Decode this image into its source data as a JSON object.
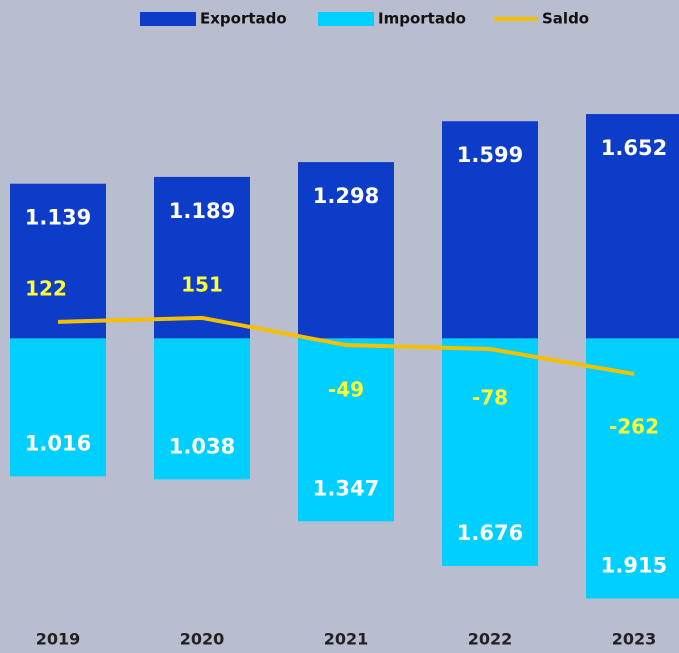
{
  "chart_data": {
    "type": "bar-line",
    "categories": [
      "2019",
      "2020",
      "2021",
      "2022",
      "2023"
    ],
    "series": [
      {
        "name": "Exportado",
        "color": "#0c3cc8",
        "values": [
          1139,
          1189,
          1298,
          1599,
          1652
        ],
        "value_labels": [
          "1.139",
          "1.189",
          "1.298",
          "1.599",
          "1.652"
        ]
      },
      {
        "name": "Importado",
        "color": "#00cfff",
        "values": [
          1016,
          1038,
          1347,
          1676,
          1915
        ],
        "value_labels": [
          "1.016",
          "1.038",
          "1.347",
          "1.676",
          "1.915"
        ]
      },
      {
        "name": "Saldo",
        "color": "#f5c000",
        "values": [
          122,
          151,
          -49,
          -78,
          -262
        ]
      }
    ],
    "ylim": [
      -2000,
      2050
    ],
    "legend": "top"
  }
}
